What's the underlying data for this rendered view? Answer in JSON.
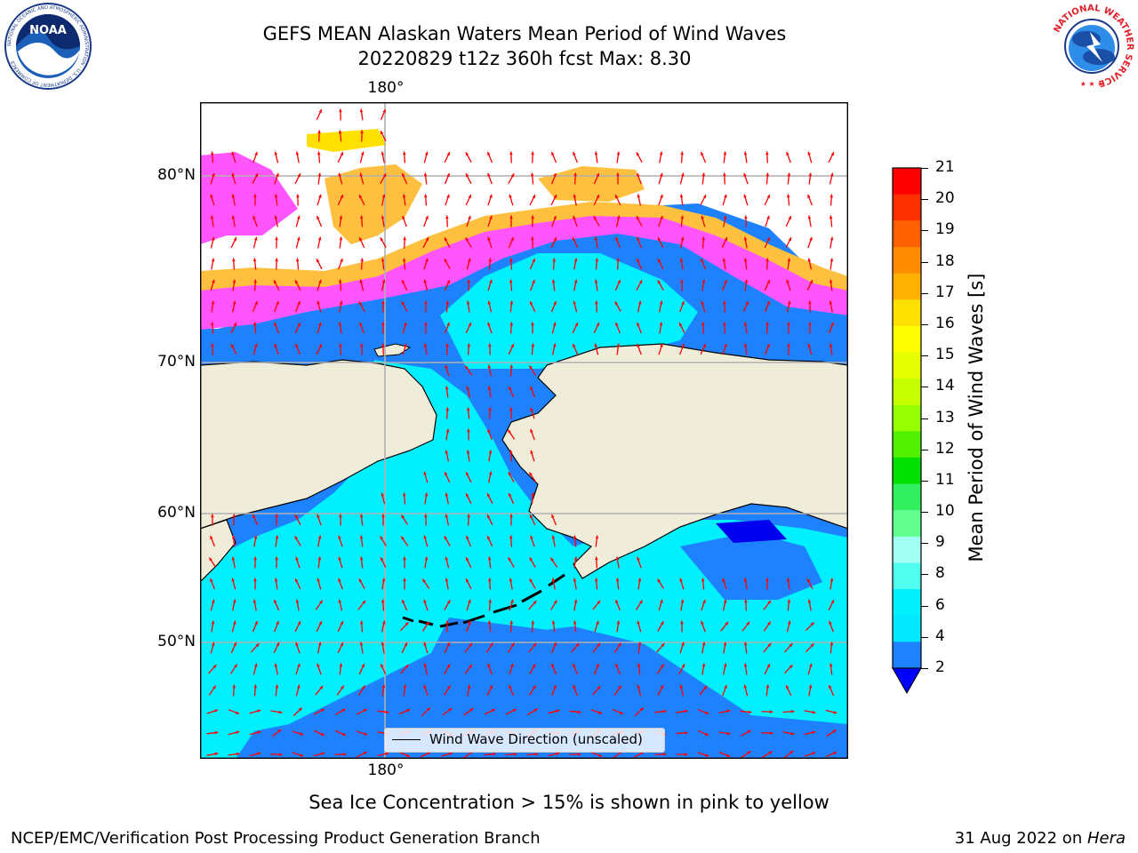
{
  "title": {
    "line1": "GEFS MEAN Alaskan Waters Mean Period of Wind Waves",
    "line2": "20220829 t12z 360h fcst   Max: 8.30"
  },
  "map": {
    "lon_label_top": "180°",
    "lon_label_bottom": "180°",
    "lat_labels": [
      "80°N",
      "70°N",
      "60°N",
      "50°N"
    ],
    "legend_text": "Wind Wave Direction (unscaled)",
    "colors": {
      "land": "#efedda",
      "ocean_2_4": "#1e82ff",
      "ocean_4_6": "#00f0ff",
      "ocean_6_8": "#80fff0",
      "ocean_lt2": "#0000ee",
      "ice_pink": "#ff55ff",
      "ice_magenta": "#ff80ff",
      "ice_orange": "#ffc040",
      "ice_yellow": "#ffe000",
      "arrows": "#ff0000"
    }
  },
  "colorbar": {
    "label": "Mean Period of Wind Waves [s]",
    "ticks": [
      "21",
      "20",
      "19",
      "18",
      "17",
      "16",
      "15",
      "14",
      "13",
      "12",
      "11",
      "10",
      "9",
      "8",
      "6",
      "4",
      "2"
    ],
    "colors_top_to_bottom": [
      "#ff0000",
      "#ff3000",
      "#ff6000",
      "#ff8c00",
      "#ffb000",
      "#ffe000",
      "#ffff00",
      "#e6ff00",
      "#c8ff00",
      "#96ff00",
      "#50f000",
      "#00e000",
      "#30f060",
      "#60ff90",
      "#a0fff0",
      "#50fff0",
      "#00f0ff",
      "#00e8ff",
      "#1e82ff"
    ],
    "extend_color": "#0000ff"
  },
  "note": "Sea Ice Concentration > 15% is shown in pink to yellow",
  "footer": {
    "left": "NCEP/EMC/Verification Post Processing Product Generation Branch",
    "right_date": "31 Aug 2022 on ",
    "right_host": "Hera"
  },
  "logos": {
    "noaa_text": "NOAA",
    "noaa_ring": "NATIONAL OCEANIC AND ATMOSPHERIC ADMINISTRATION · U.S. DEPARTMENT OF COMMERCE",
    "nws_ring": "NATIONAL WEATHER SERVICE"
  }
}
